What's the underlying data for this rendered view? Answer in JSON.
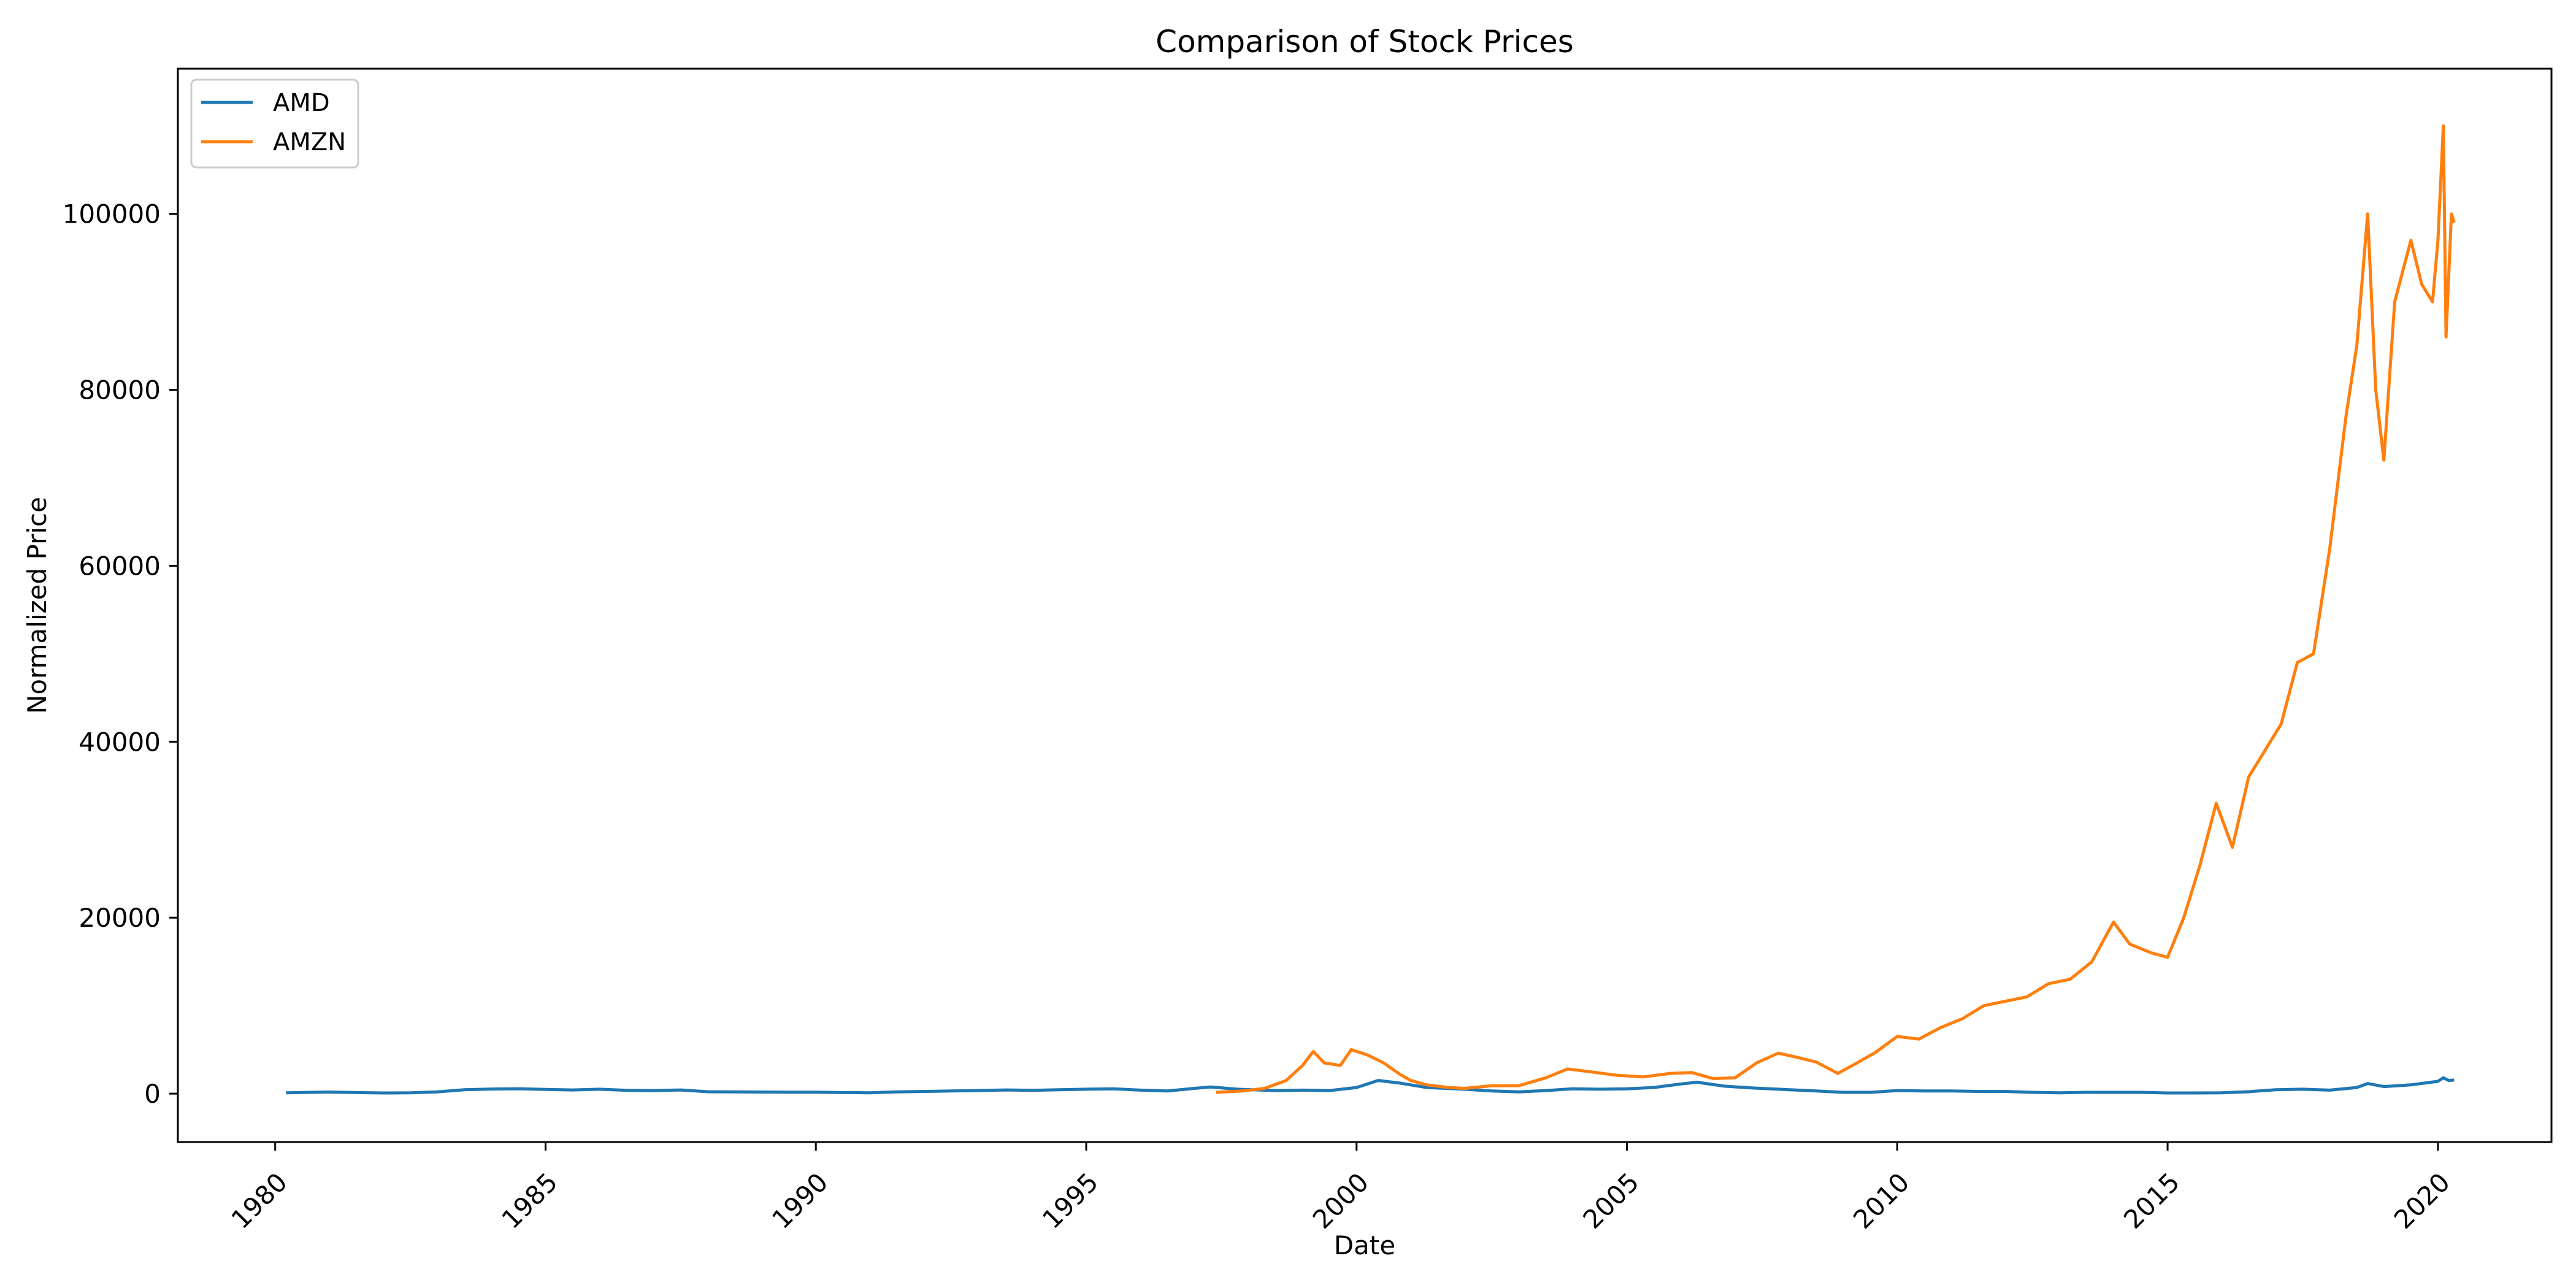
{
  "chart_data": {
    "type": "line",
    "title": "Comparison of Stock Prices",
    "xlabel": "Date",
    "ylabel": "Normalized Price",
    "xlim": [
      1978.2,
      2022.1
    ],
    "ylim": [
      -5500,
      116500
    ],
    "x_ticks": [
      1980,
      1985,
      1990,
      1995,
      2000,
      2005,
      2010,
      2015,
      2020
    ],
    "x_tick_labels": [
      "1980",
      "1985",
      "1990",
      "1995",
      "2000",
      "2005",
      "2010",
      "2015",
      "2020"
    ],
    "y_ticks": [
      0,
      20000,
      40000,
      60000,
      80000,
      100000
    ],
    "y_tick_labels": [
      "0",
      "20000",
      "40000",
      "60000",
      "80000",
      "100000"
    ],
    "grid": false,
    "legend_position": "top-left",
    "series": [
      {
        "name": "AMD",
        "color": "#1f77b4",
        "points": [
          [
            1980.2,
            100
          ],
          [
            1981.0,
            180
          ],
          [
            1981.5,
            120
          ],
          [
            1982.0,
            80
          ],
          [
            1982.5,
            90
          ],
          [
            1983.0,
            200
          ],
          [
            1983.5,
            450
          ],
          [
            1984.0,
            520
          ],
          [
            1984.5,
            560
          ],
          [
            1985.0,
            480
          ],
          [
            1985.5,
            420
          ],
          [
            1986.0,
            500
          ],
          [
            1986.5,
            380
          ],
          [
            1987.0,
            350
          ],
          [
            1987.5,
            420
          ],
          [
            1988.0,
            220
          ],
          [
            1988.5,
            200
          ],
          [
            1989.0,
            180
          ],
          [
            1989.5,
            170
          ],
          [
            1990.0,
            160
          ],
          [
            1990.5,
            120
          ],
          [
            1991.0,
            100
          ],
          [
            1991.5,
            200
          ],
          [
            1992.0,
            250
          ],
          [
            1992.5,
            300
          ],
          [
            1993.0,
            350
          ],
          [
            1993.5,
            420
          ],
          [
            1994.0,
            380
          ],
          [
            1994.5,
            450
          ],
          [
            1995.0,
            500
          ],
          [
            1995.5,
            550
          ],
          [
            1996.0,
            400
          ],
          [
            1996.5,
            300
          ],
          [
            1997.0,
            600
          ],
          [
            1997.3,
            750
          ],
          [
            1997.8,
            500
          ],
          [
            1998.5,
            350
          ],
          [
            1999.0,
            400
          ],
          [
            1999.5,
            350
          ],
          [
            2000.0,
            700
          ],
          [
            2000.4,
            1500
          ],
          [
            2000.8,
            1200
          ],
          [
            2001.3,
            700
          ],
          [
            2002.0,
            500
          ],
          [
            2002.5,
            300
          ],
          [
            2003.0,
            200
          ],
          [
            2003.5,
            350
          ],
          [
            2004.0,
            550
          ],
          [
            2004.5,
            500
          ],
          [
            2005.0,
            550
          ],
          [
            2005.5,
            700
          ],
          [
            2006.0,
            1100
          ],
          [
            2006.3,
            1300
          ],
          [
            2006.8,
            850
          ],
          [
            2007.3,
            650
          ],
          [
            2008.0,
            450
          ],
          [
            2008.5,
            300
          ],
          [
            2009.0,
            150
          ],
          [
            2009.5,
            150
          ],
          [
            2010.0,
            350
          ],
          [
            2010.5,
            300
          ],
          [
            2011.0,
            300
          ],
          [
            2011.5,
            250
          ],
          [
            2012.0,
            250
          ],
          [
            2012.5,
            150
          ],
          [
            2013.0,
            100
          ],
          [
            2013.5,
            150
          ],
          [
            2014.0,
            150
          ],
          [
            2014.5,
            150
          ],
          [
            2015.0,
            80
          ],
          [
            2015.5,
            80
          ],
          [
            2016.0,
            100
          ],
          [
            2016.5,
            220
          ],
          [
            2017.0,
            450
          ],
          [
            2017.5,
            500
          ],
          [
            2018.0,
            400
          ],
          [
            2018.5,
            700
          ],
          [
            2018.7,
            1150
          ],
          [
            2019.0,
            800
          ],
          [
            2019.5,
            1000
          ],
          [
            2020.0,
            1400
          ],
          [
            2020.1,
            1800
          ],
          [
            2020.2,
            1500
          ],
          [
            2020.3,
            1550
          ]
        ]
      },
      {
        "name": "AMZN",
        "color": "#ff7f0e",
        "points": [
          [
            1997.4,
            150
          ],
          [
            1997.9,
            300
          ],
          [
            1998.3,
            600
          ],
          [
            1998.7,
            1500
          ],
          [
            1999.0,
            3200
          ],
          [
            1999.2,
            4800
          ],
          [
            1999.4,
            3500
          ],
          [
            1999.7,
            3200
          ],
          [
            1999.9,
            5000
          ],
          [
            2000.2,
            4400
          ],
          [
            2000.5,
            3500
          ],
          [
            2000.8,
            2200
          ],
          [
            2001.0,
            1500
          ],
          [
            2001.3,
            1000
          ],
          [
            2001.7,
            700
          ],
          [
            2002.0,
            600
          ],
          [
            2002.5,
            900
          ],
          [
            2003.0,
            900
          ],
          [
            2003.5,
            1800
          ],
          [
            2003.9,
            2800
          ],
          [
            2004.3,
            2500
          ],
          [
            2004.8,
            2100
          ],
          [
            2005.3,
            1900
          ],
          [
            2005.8,
            2300
          ],
          [
            2006.2,
            2400
          ],
          [
            2006.6,
            1700
          ],
          [
            2007.0,
            1800
          ],
          [
            2007.4,
            3500
          ],
          [
            2007.8,
            4600
          ],
          [
            2008.1,
            4200
          ],
          [
            2008.5,
            3600
          ],
          [
            2008.9,
            2300
          ],
          [
            2009.2,
            3300
          ],
          [
            2009.6,
            4700
          ],
          [
            2010.0,
            6500
          ],
          [
            2010.4,
            6200
          ],
          [
            2010.8,
            7500
          ],
          [
            2011.2,
            8500
          ],
          [
            2011.6,
            10000
          ],
          [
            2012.0,
            10500
          ],
          [
            2012.4,
            11000
          ],
          [
            2012.8,
            12500
          ],
          [
            2013.2,
            13000
          ],
          [
            2013.6,
            15000
          ],
          [
            2014.0,
            19500
          ],
          [
            2014.3,
            17000
          ],
          [
            2014.7,
            16000
          ],
          [
            2015.0,
            15500
          ],
          [
            2015.3,
            20000
          ],
          [
            2015.6,
            26000
          ],
          [
            2015.9,
            33000
          ],
          [
            2016.2,
            28000
          ],
          [
            2016.5,
            36000
          ],
          [
            2016.8,
            39000
          ],
          [
            2017.1,
            42000
          ],
          [
            2017.4,
            49000
          ],
          [
            2017.7,
            50000
          ],
          [
            2018.0,
            62000
          ],
          [
            2018.3,
            77000
          ],
          [
            2018.5,
            85000
          ],
          [
            2018.7,
            100000
          ],
          [
            2018.85,
            80000
          ],
          [
            2019.0,
            72000
          ],
          [
            2019.2,
            90000
          ],
          [
            2019.5,
            97000
          ],
          [
            2019.7,
            92000
          ],
          [
            2019.9,
            90000
          ],
          [
            2020.0,
            97000
          ],
          [
            2020.1,
            110000
          ],
          [
            2020.15,
            86000
          ],
          [
            2020.25,
            100000
          ],
          [
            2020.3,
            99000
          ]
        ]
      }
    ]
  }
}
